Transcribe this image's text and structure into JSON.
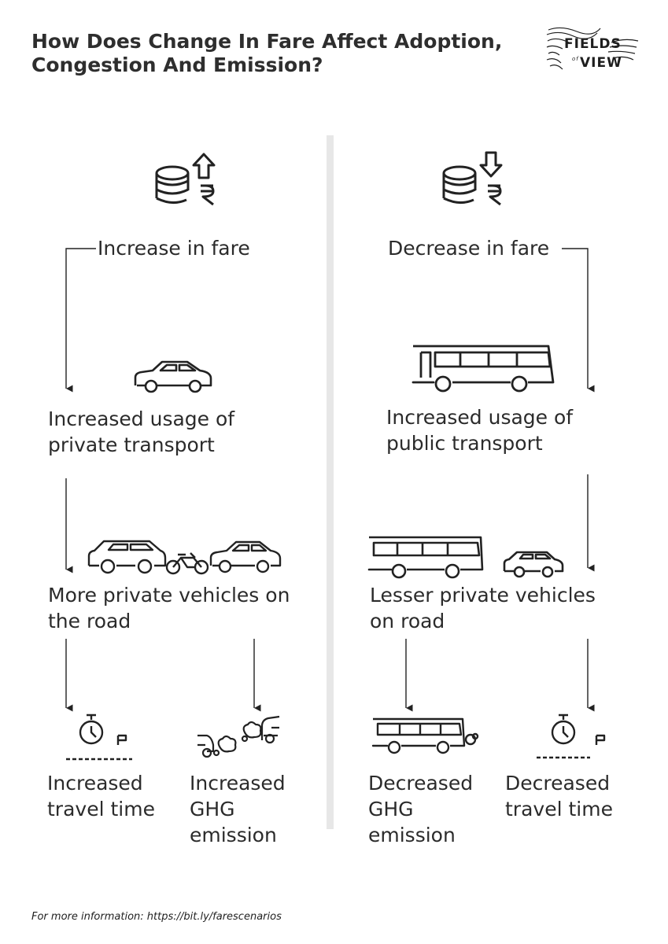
{
  "title": "How Does Change In Fare Affect Adoption, Congestion And Emission?",
  "logo": {
    "line1": "FIELDS",
    "line2": "of",
    "line3": "VIEW"
  },
  "left": {
    "trigger": "Increase in fare",
    "step1": [
      "Increased usage of",
      "private transport"
    ],
    "step2": [
      "More private vehicles on",
      "the road"
    ],
    "outcome_a": [
      "Increased",
      "travel time"
    ],
    "outcome_b": [
      "Increased",
      "GHG",
      "emission"
    ]
  },
  "right": {
    "trigger": "Decrease in fare",
    "step1": [
      "Increased usage of",
      "public transport"
    ],
    "step2": [
      "Lesser private vehicles",
      "on road"
    ],
    "outcome_a": [
      "Decreased",
      "GHG",
      "emission"
    ],
    "outcome_b": [
      "Decreased",
      "travel time"
    ]
  },
  "icons": {
    "fare_up": "coins-rupee-up-arrow-icon",
    "fare_down": "coins-rupee-down-arrow-icon",
    "car": "car-icon",
    "bus": "bus-icon",
    "traffic": "car-motorbike-car-icon",
    "bus_car": "bus-and-car-icon",
    "stopwatch": "stopwatch-flag-icon",
    "smoke": "car-exhaust-smoke-icon",
    "bus_smoke": "bus-exhaust-icon"
  },
  "footer": "For more information: https://bit.ly/farescenarios"
}
